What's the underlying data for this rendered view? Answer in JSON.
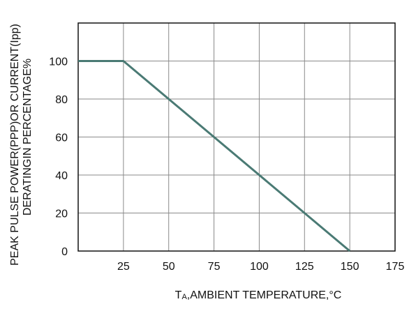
{
  "chart_data": {
    "type": "line",
    "title": "",
    "xlabel": {
      "main": "T",
      "sub": "A",
      "rest": ",AMBIENT TEMPERATURE,°C"
    },
    "ylabel": [
      "PEAK PULSE POWER(PPP)OR CURRENT(Ipp)",
      "DERATINGIN PERCENTAGE%"
    ],
    "xlim": [
      0,
      175
    ],
    "ylim": [
      0,
      120
    ],
    "xticks": [
      25,
      50,
      75,
      100,
      125,
      150,
      175
    ],
    "yticks": [
      0,
      20,
      40,
      60,
      80,
      100
    ],
    "grid": true,
    "series": [
      {
        "x": [
          0,
          25,
          150
        ],
        "y": [
          100,
          100,
          0
        ],
        "color": "#4a7a74"
      }
    ]
  }
}
